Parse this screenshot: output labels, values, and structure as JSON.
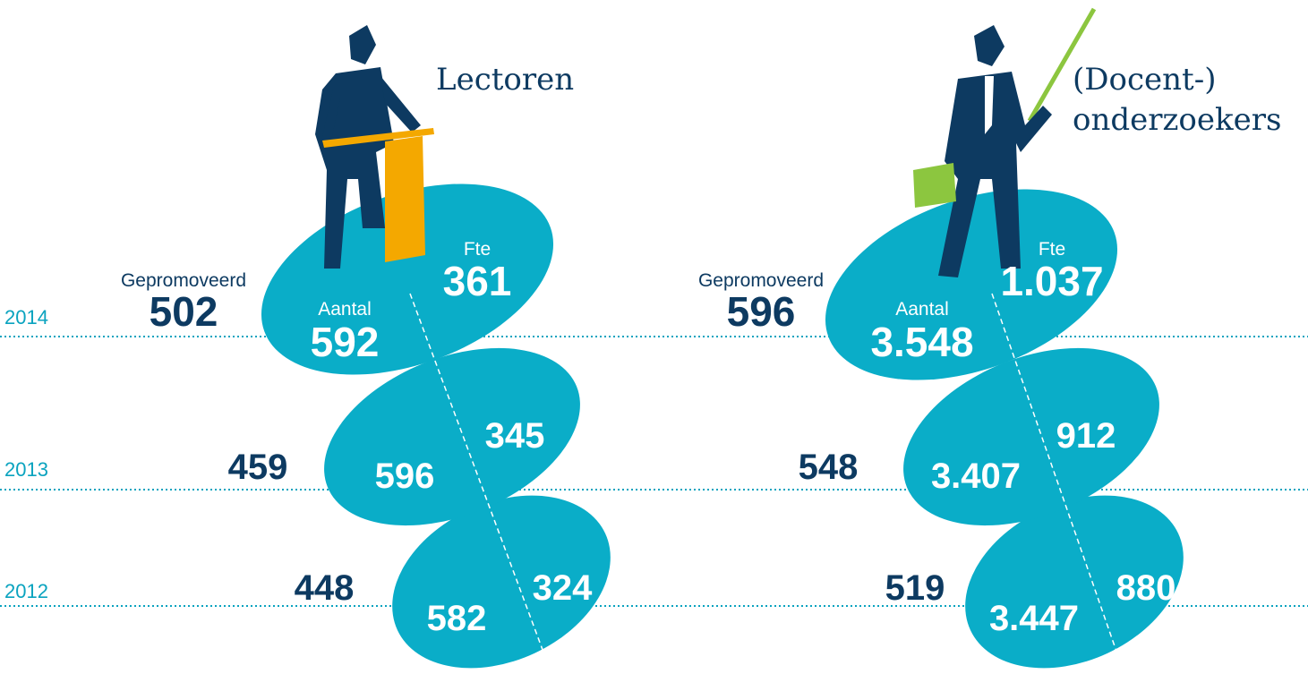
{
  "years": [
    "2014",
    "2013",
    "2012"
  ],
  "panels": [
    {
      "title": [
        "Lectoren"
      ],
      "labels": {
        "gepromoveerd": "Gepromoveerd",
        "aantal": "Aantal",
        "fte": "Fte"
      },
      "rows": [
        {
          "gepromoveerd": "502",
          "aantal": "592",
          "fte": "361"
        },
        {
          "gepromoveerd": "459",
          "aantal": "596",
          "fte": "345"
        },
        {
          "gepromoveerd": "448",
          "aantal": "582",
          "fte": "324"
        }
      ]
    },
    {
      "title": [
        "(Docent-)",
        "onderzoekers"
      ],
      "labels": {
        "gepromoveerd": "Gepromoveerd",
        "aantal": "Aantal",
        "fte": "Fte"
      },
      "rows": [
        {
          "gepromoveerd": "596",
          "aantal": "3.548",
          "fte": "1.037"
        },
        {
          "gepromoveerd": "548",
          "aantal": "3.407",
          "fte": "912"
        },
        {
          "gepromoveerd": "519",
          "aantal": "3.447",
          "fte": "880"
        }
      ]
    }
  ]
}
